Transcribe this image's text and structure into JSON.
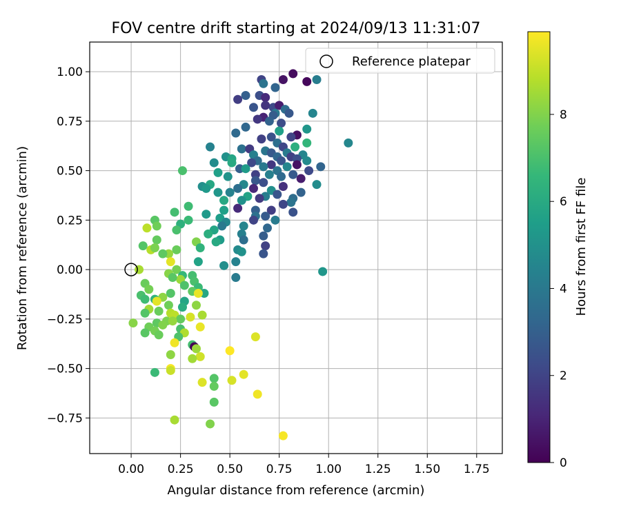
{
  "chart_data": {
    "type": "scatter",
    "title": "FOV centre drift starting at 2024/09/13 11:31:07",
    "xlabel": "Angular distance from reference (arcmin)",
    "ylabel": "Rotation from reference (arcmin)",
    "xlim": [
      -0.21,
      1.88
    ],
    "ylim": [
      -0.93,
      1.15
    ],
    "xticks": [
      0.0,
      0.25,
      0.5,
      0.75,
      1.0,
      1.25,
      1.5,
      1.75
    ],
    "xtick_labels": [
      "0.00",
      "0.25",
      "0.50",
      "0.75",
      "1.00",
      "1.25",
      "1.50",
      "1.75"
    ],
    "yticks": [
      -0.75,
      -0.5,
      -0.25,
      0.0,
      0.25,
      0.5,
      0.75,
      1.0
    ],
    "ytick_labels": [
      "−0.75",
      "−0.50",
      "−0.25",
      "0.00",
      "0.25",
      "0.50",
      "0.75",
      "1.00"
    ],
    "grid": true,
    "legend": {
      "position": "top-right",
      "entries": [
        "Reference platepar"
      ]
    },
    "reference_point": {
      "x": 0.0,
      "y": 0.0,
      "marker": "open-circle"
    },
    "colorbar": {
      "label": "Hours from first FF file",
      "colormap": "viridis",
      "range": [
        0,
        9.9
      ],
      "ticks": [
        0,
        2,
        4,
        6,
        8
      ],
      "tick_labels": [
        "0",
        "2",
        "4",
        "6",
        "8"
      ]
    },
    "points": [
      {
        "x": 0.82,
        "y": 0.99,
        "c": 0.3
      },
      {
        "x": 0.77,
        "y": 0.96,
        "c": 0.5
      },
      {
        "x": 0.66,
        "y": 0.96,
        "c": 2.0
      },
      {
        "x": 0.94,
        "y": 0.96,
        "c": 4.2
      },
      {
        "x": 0.89,
        "y": 0.95,
        "c": 0.2
      },
      {
        "x": 0.67,
        "y": 0.94,
        "c": 3.8
      },
      {
        "x": 0.73,
        "y": 0.92,
        "c": 3.2
      },
      {
        "x": 0.65,
        "y": 0.88,
        "c": 2.4
      },
      {
        "x": 0.58,
        "y": 0.88,
        "c": 3.0
      },
      {
        "x": 0.54,
        "y": 0.86,
        "c": 1.8
      },
      {
        "x": 0.68,
        "y": 0.87,
        "c": 1.2
      },
      {
        "x": 0.72,
        "y": 0.82,
        "c": 2.2
      },
      {
        "x": 0.62,
        "y": 0.82,
        "c": 2.6
      },
      {
        "x": 0.68,
        "y": 0.83,
        "c": 1.5
      },
      {
        "x": 0.75,
        "y": 0.83,
        "c": 0.8
      },
      {
        "x": 0.78,
        "y": 0.81,
        "c": 3.5
      },
      {
        "x": 0.73,
        "y": 0.79,
        "c": 4.0
      },
      {
        "x": 0.8,
        "y": 0.79,
        "c": 2.7
      },
      {
        "x": 0.92,
        "y": 0.79,
        "c": 4.5
      },
      {
        "x": 0.72,
        "y": 0.78,
        "c": 2.9
      },
      {
        "x": 0.67,
        "y": 0.77,
        "c": 1.0
      },
      {
        "x": 0.64,
        "y": 0.76,
        "c": 1.6
      },
      {
        "x": 0.7,
        "y": 0.75,
        "c": 3.1
      },
      {
        "x": 0.76,
        "y": 0.74,
        "c": 2.3
      },
      {
        "x": 0.58,
        "y": 0.72,
        "c": 3.3
      },
      {
        "x": 0.75,
        "y": 0.7,
        "c": 5.6
      },
      {
        "x": 0.89,
        "y": 0.71,
        "c": 5.2
      },
      {
        "x": 0.53,
        "y": 0.69,
        "c": 3.4
      },
      {
        "x": 0.84,
        "y": 0.68,
        "c": 0.4
      },
      {
        "x": 0.81,
        "y": 0.67,
        "c": 2.0
      },
      {
        "x": 0.71,
        "y": 0.67,
        "c": 2.5
      },
      {
        "x": 0.66,
        "y": 0.66,
        "c": 1.9
      },
      {
        "x": 0.74,
        "y": 0.64,
        "c": 3.6
      },
      {
        "x": 1.1,
        "y": 0.64,
        "c": 4.6
      },
      {
        "x": 0.89,
        "y": 0.64,
        "c": 6.5
      },
      {
        "x": 0.83,
        "y": 0.62,
        "c": 6.2
      },
      {
        "x": 0.77,
        "y": 0.62,
        "c": 2.1
      },
      {
        "x": 0.4,
        "y": 0.62,
        "c": 4.4
      },
      {
        "x": 0.56,
        "y": 0.61,
        "c": 3.7
      },
      {
        "x": 0.6,
        "y": 0.61,
        "c": 1.7
      },
      {
        "x": 0.68,
        "y": 0.6,
        "c": 3.9
      },
      {
        "x": 0.79,
        "y": 0.59,
        "c": 4.1
      },
      {
        "x": 0.71,
        "y": 0.59,
        "c": 2.8
      },
      {
        "x": 0.62,
        "y": 0.58,
        "c": 4.3
      },
      {
        "x": 0.87,
        "y": 0.58,
        "c": 4.5
      },
      {
        "x": 0.48,
        "y": 0.57,
        "c": 5.0
      },
      {
        "x": 0.74,
        "y": 0.57,
        "c": 3.3
      },
      {
        "x": 0.81,
        "y": 0.57,
        "c": 1.9
      },
      {
        "x": 0.84,
        "y": 0.56,
        "c": 2.4
      },
      {
        "x": 0.51,
        "y": 0.56,
        "c": 5.8
      },
      {
        "x": 0.89,
        "y": 0.55,
        "c": 4.7
      },
      {
        "x": 0.76,
        "y": 0.55,
        "c": 2.6
      },
      {
        "x": 0.64,
        "y": 0.55,
        "c": 3.5
      },
      {
        "x": 0.61,
        "y": 0.54,
        "c": 2.2
      },
      {
        "x": 0.42,
        "y": 0.54,
        "c": 4.8
      },
      {
        "x": 0.51,
        "y": 0.54,
        "c": 6.0
      },
      {
        "x": 0.71,
        "y": 0.53,
        "c": 1.6
      },
      {
        "x": 0.84,
        "y": 0.53,
        "c": 0.5
      },
      {
        "x": 0.96,
        "y": 0.52,
        "c": 3.2
      },
      {
        "x": 0.67,
        "y": 0.52,
        "c": 4.0
      },
      {
        "x": 0.79,
        "y": 0.52,
        "c": 4.6
      },
      {
        "x": 0.55,
        "y": 0.51,
        "c": 3.0
      },
      {
        "x": 0.58,
        "y": 0.51,
        "c": 5.4
      },
      {
        "x": 0.26,
        "y": 0.5,
        "c": 7.0
      },
      {
        "x": 0.74,
        "y": 0.5,
        "c": 3.8
      },
      {
        "x": 0.9,
        "y": 0.5,
        "c": 2.2
      },
      {
        "x": 0.44,
        "y": 0.49,
        "c": 5.6
      },
      {
        "x": 0.63,
        "y": 0.48,
        "c": 1.9
      },
      {
        "x": 0.7,
        "y": 0.48,
        "c": 4.3
      },
      {
        "x": 0.82,
        "y": 0.48,
        "c": 2.8
      },
      {
        "x": 0.76,
        "y": 0.47,
        "c": 3.4
      },
      {
        "x": 0.49,
        "y": 0.47,
        "c": 5.1
      },
      {
        "x": 0.86,
        "y": 0.46,
        "c": 0.8
      },
      {
        "x": 0.63,
        "y": 0.45,
        "c": 2.7
      },
      {
        "x": 0.67,
        "y": 0.44,
        "c": 2.4
      },
      {
        "x": 0.4,
        "y": 0.43,
        "c": 5.9
      },
      {
        "x": 0.57,
        "y": 0.43,
        "c": 4.6
      },
      {
        "x": 0.36,
        "y": 0.42,
        "c": 4.9
      },
      {
        "x": 0.94,
        "y": 0.43,
        "c": 4.8
      },
      {
        "x": 0.77,
        "y": 0.42,
        "c": 1.4
      },
      {
        "x": 0.62,
        "y": 0.41,
        "c": 1.1
      },
      {
        "x": 0.38,
        "y": 0.41,
        "c": 5.3
      },
      {
        "x": 0.54,
        "y": 0.41,
        "c": 3.6
      },
      {
        "x": 0.71,
        "y": 0.4,
        "c": 4.9
      },
      {
        "x": 0.86,
        "y": 0.39,
        "c": 3.1
      },
      {
        "x": 0.5,
        "y": 0.39,
        "c": 4.4
      },
      {
        "x": 0.44,
        "y": 0.39,
        "c": 5.2
      },
      {
        "x": 0.74,
        "y": 0.38,
        "c": 2.6
      },
      {
        "x": 0.68,
        "y": 0.37,
        "c": 4.2
      },
      {
        "x": 0.59,
        "y": 0.37,
        "c": 5.7
      },
      {
        "x": 0.65,
        "y": 0.36,
        "c": 1.7
      },
      {
        "x": 0.82,
        "y": 0.36,
        "c": 3.5
      },
      {
        "x": 0.81,
        "y": 0.34,
        "c": 3.8
      },
      {
        "x": 0.77,
        "y": 0.33,
        "c": 2.1
      },
      {
        "x": 0.47,
        "y": 0.35,
        "c": 5.9
      },
      {
        "x": 0.56,
        "y": 0.35,
        "c": 5.0
      },
      {
        "x": 0.29,
        "y": 0.32,
        "c": 6.8
      },
      {
        "x": 0.54,
        "y": 0.31,
        "c": 1.2
      },
      {
        "x": 0.63,
        "y": 0.3,
        "c": 3.0
      },
      {
        "x": 0.71,
        "y": 0.3,
        "c": 1.8
      },
      {
        "x": 0.47,
        "y": 0.3,
        "c": 5.6
      },
      {
        "x": 0.82,
        "y": 0.29,
        "c": 2.5
      },
      {
        "x": 0.38,
        "y": 0.28,
        "c": 5.3
      },
      {
        "x": 0.22,
        "y": 0.29,
        "c": 6.9
      },
      {
        "x": 0.63,
        "y": 0.27,
        "c": 3.7
      },
      {
        "x": 0.68,
        "y": 0.27,
        "c": 2.8
      },
      {
        "x": 0.45,
        "y": 0.26,
        "c": 5.5
      },
      {
        "x": 0.73,
        "y": 0.25,
        "c": 4.1
      },
      {
        "x": 0.29,
        "y": 0.25,
        "c": 6.7
      },
      {
        "x": 0.12,
        "y": 0.25,
        "c": 7.3
      },
      {
        "x": 0.62,
        "y": 0.25,
        "c": 2.0
      },
      {
        "x": 0.48,
        "y": 0.24,
        "c": 4.6
      },
      {
        "x": 0.25,
        "y": 0.23,
        "c": 6.3
      },
      {
        "x": 0.13,
        "y": 0.22,
        "c": 7.7
      },
      {
        "x": 0.08,
        "y": 0.21,
        "c": 8.9
      },
      {
        "x": 0.57,
        "y": 0.22,
        "c": 4.5
      },
      {
        "x": 0.46,
        "y": 0.22,
        "c": 4.0
      },
      {
        "x": 0.69,
        "y": 0.21,
        "c": 3.3
      },
      {
        "x": 0.23,
        "y": 0.2,
        "c": 7.0
      },
      {
        "x": 0.42,
        "y": 0.2,
        "c": 5.8
      },
      {
        "x": 0.39,
        "y": 0.18,
        "c": 6.2
      },
      {
        "x": 0.56,
        "y": 0.18,
        "c": 4.3
      },
      {
        "x": 0.67,
        "y": 0.17,
        "c": 2.9
      },
      {
        "x": 0.45,
        "y": 0.15,
        "c": 5.4
      },
      {
        "x": 0.13,
        "y": 0.15,
        "c": 7.5
      },
      {
        "x": 0.57,
        "y": 0.15,
        "c": 3.6
      },
      {
        "x": 0.06,
        "y": 0.12,
        "c": 7.2
      },
      {
        "x": 0.33,
        "y": 0.14,
        "c": 8.0
      },
      {
        "x": 0.43,
        "y": 0.14,
        "c": 6.0
      },
      {
        "x": 0.68,
        "y": 0.12,
        "c": 1.9
      },
      {
        "x": 0.1,
        "y": 0.1,
        "c": 8.8
      },
      {
        "x": 0.12,
        "y": 0.11,
        "c": 7.9
      },
      {
        "x": 0.23,
        "y": 0.1,
        "c": 7.6
      },
      {
        "x": 0.35,
        "y": 0.11,
        "c": 6.4
      },
      {
        "x": 0.54,
        "y": 0.1,
        "c": 4.7
      },
      {
        "x": 0.56,
        "y": 0.09,
        "c": 5.0
      },
      {
        "x": 0.19,
        "y": 0.08,
        "c": 8.3
      },
      {
        "x": 0.16,
        "y": 0.08,
        "c": 7.4
      },
      {
        "x": 0.67,
        "y": 0.08,
        "c": 2.6
      },
      {
        "x": 0.34,
        "y": 0.04,
        "c": 5.7
      },
      {
        "x": 0.2,
        "y": 0.04,
        "c": 9.5
      },
      {
        "x": 0.53,
        "y": 0.04,
        "c": 4.4
      },
      {
        "x": 0.47,
        "y": 0.02,
        "c": 4.9
      },
      {
        "x": 0.04,
        "y": 0.0,
        "c": 8.6
      },
      {
        "x": 0.97,
        "y": -0.01,
        "c": 5.2
      },
      {
        "x": 0.23,
        "y": 0.0,
        "c": 7.8
      },
      {
        "x": 0.19,
        "y": -0.02,
        "c": 8.1
      },
      {
        "x": 0.26,
        "y": -0.03,
        "c": 6.6
      },
      {
        "x": 0.31,
        "y": -0.03,
        "c": 6.9
      },
      {
        "x": 0.53,
        "y": -0.04,
        "c": 4.1
      },
      {
        "x": 0.25,
        "y": -0.05,
        "c": 8.4
      },
      {
        "x": 0.21,
        "y": -0.04,
        "c": 7.3
      },
      {
        "x": 0.32,
        "y": -0.06,
        "c": 7.0
      },
      {
        "x": 0.07,
        "y": -0.07,
        "c": 7.6
      },
      {
        "x": 0.27,
        "y": -0.08,
        "c": 7.1
      },
      {
        "x": 0.34,
        "y": -0.09,
        "c": 6.7
      },
      {
        "x": 0.09,
        "y": -0.1,
        "c": 7.8
      },
      {
        "x": 0.31,
        "y": -0.11,
        "c": 7.4
      },
      {
        "x": 0.37,
        "y": -0.12,
        "c": 5.9
      },
      {
        "x": 0.2,
        "y": -0.12,
        "c": 7.2
      },
      {
        "x": 0.05,
        "y": -0.13,
        "c": 7.0
      },
      {
        "x": 0.34,
        "y": -0.12,
        "c": 9.6
      },
      {
        "x": 0.16,
        "y": -0.14,
        "c": 8.2
      },
      {
        "x": 0.07,
        "y": -0.15,
        "c": 6.8
      },
      {
        "x": 0.12,
        "y": -0.15,
        "c": 6.4
      },
      {
        "x": 0.27,
        "y": -0.16,
        "c": 5.8
      },
      {
        "x": 0.13,
        "y": -0.16,
        "c": 9.5
      },
      {
        "x": 0.33,
        "y": -0.18,
        "c": 8.2
      },
      {
        "x": 0.19,
        "y": -0.18,
        "c": 7.7
      },
      {
        "x": 0.26,
        "y": -0.19,
        "c": 6.1
      },
      {
        "x": 0.09,
        "y": -0.2,
        "c": 8.5
      },
      {
        "x": 0.14,
        "y": -0.21,
        "c": 7.6
      },
      {
        "x": 0.2,
        "y": -0.22,
        "c": 8.8
      },
      {
        "x": 0.07,
        "y": -0.22,
        "c": 7.2
      },
      {
        "x": 0.22,
        "y": -0.23,
        "c": 8.9
      },
      {
        "x": 0.36,
        "y": -0.23,
        "c": 8.6
      },
      {
        "x": 0.3,
        "y": -0.24,
        "c": 9.3
      },
      {
        "x": 0.25,
        "y": -0.25,
        "c": 7.5
      },
      {
        "x": 0.18,
        "y": -0.26,
        "c": 7.9
      },
      {
        "x": 0.21,
        "y": -0.26,
        "c": 8.3
      },
      {
        "x": 0.01,
        "y": -0.27,
        "c": 8.1
      },
      {
        "x": 0.13,
        "y": -0.27,
        "c": 7.4
      },
      {
        "x": 0.16,
        "y": -0.28,
        "c": 8.0
      },
      {
        "x": 0.09,
        "y": -0.29,
        "c": 7.7
      },
      {
        "x": 0.35,
        "y": -0.29,
        "c": 9.6
      },
      {
        "x": 0.25,
        "y": -0.3,
        "c": 7.0
      },
      {
        "x": 0.12,
        "y": -0.31,
        "c": 7.8
      },
      {
        "x": 0.07,
        "y": -0.32,
        "c": 7.3
      },
      {
        "x": 0.27,
        "y": -0.32,
        "c": 8.7
      },
      {
        "x": 0.14,
        "y": -0.33,
        "c": 7.6
      },
      {
        "x": 0.63,
        "y": -0.34,
        "c": 9.4
      },
      {
        "x": 0.24,
        "y": -0.34,
        "c": 7.1
      },
      {
        "x": 0.22,
        "y": -0.37,
        "c": 9.7
      },
      {
        "x": 0.31,
        "y": -0.38,
        "c": 6.9
      },
      {
        "x": 0.32,
        "y": -0.39,
        "c": 0.0
      },
      {
        "x": 0.33,
        "y": -0.4,
        "c": 8.4
      },
      {
        "x": 0.5,
        "y": -0.41,
        "c": 9.9
      },
      {
        "x": 0.2,
        "y": -0.43,
        "c": 8.2
      },
      {
        "x": 0.35,
        "y": -0.44,
        "c": 9.2
      },
      {
        "x": 0.31,
        "y": -0.45,
        "c": 8.5
      },
      {
        "x": 0.2,
        "y": -0.5,
        "c": 9.8
      },
      {
        "x": 0.2,
        "y": -0.51,
        "c": 9.1
      },
      {
        "x": 0.12,
        "y": -0.52,
        "c": 6.7
      },
      {
        "x": 0.57,
        "y": -0.53,
        "c": 9.5
      },
      {
        "x": 0.42,
        "y": -0.55,
        "c": 7.2
      },
      {
        "x": 0.51,
        "y": -0.56,
        "c": 9.3
      },
      {
        "x": 0.36,
        "y": -0.57,
        "c": 9.4
      },
      {
        "x": 0.42,
        "y": -0.59,
        "c": 7.5
      },
      {
        "x": 0.64,
        "y": -0.63,
        "c": 9.7
      },
      {
        "x": 0.42,
        "y": -0.67,
        "c": 7.3
      },
      {
        "x": 0.22,
        "y": -0.76,
        "c": 8.6
      },
      {
        "x": 0.4,
        "y": -0.78,
        "c": 8.0
      },
      {
        "x": 0.77,
        "y": -0.84,
        "c": 9.8
      }
    ]
  }
}
